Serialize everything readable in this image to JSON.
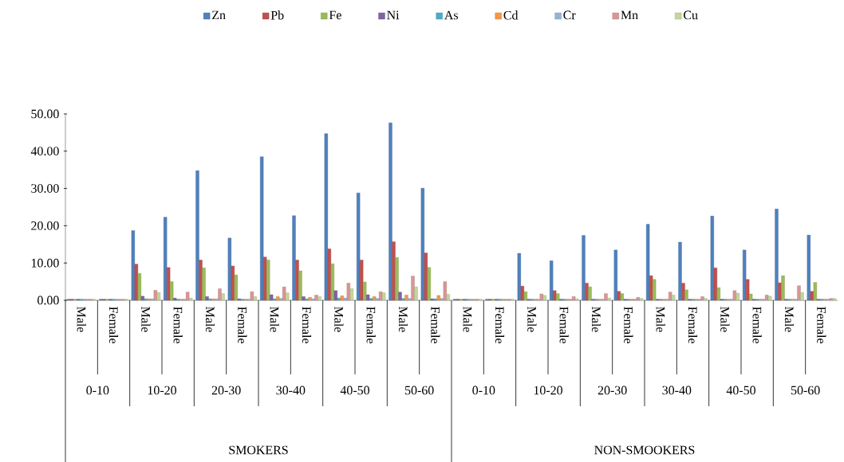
{
  "chart_data": {
    "type": "bar",
    "categories": [
      "Male",
      "Female",
      "Male",
      "Female",
      "Male",
      "Female",
      "Male",
      "Female",
      "Male",
      "Female",
      "Male",
      "Female",
      "Male",
      "Female",
      "Male",
      "Female",
      "Male",
      "Female",
      "Male",
      "Female",
      "Male",
      "Female",
      "Male",
      "Female"
    ],
    "series": [
      {
        "name": "Zn",
        "color": "#4f81bd",
        "values": [
          0.3,
          0.3,
          18.7,
          22.3,
          34.8,
          16.7,
          38.5,
          22.7,
          44.7,
          28.8,
          47.6,
          30.1,
          0.3,
          0.3,
          12.6,
          10.6,
          17.4,
          13.5,
          20.4,
          15.6,
          22.6,
          13.5,
          24.5,
          17.5
        ]
      },
      {
        "name": "Pb",
        "color": "#c0504d",
        "values": [
          0.3,
          0.3,
          9.7,
          8.8,
          10.8,
          9.2,
          11.6,
          10.8,
          13.8,
          10.8,
          15.7,
          12.7,
          0.3,
          0.3,
          3.8,
          2.6,
          4.6,
          2.4,
          6.6,
          4.6,
          8.7,
          5.6,
          4.7,
          2.4
        ]
      },
      {
        "name": "Fe",
        "color": "#9bbb59",
        "values": [
          0.3,
          0.3,
          7.2,
          5.0,
          8.7,
          6.8,
          10.8,
          7.9,
          9.8,
          4.9,
          11.5,
          8.8,
          0.3,
          0.3,
          2.3,
          1.8,
          3.6,
          1.8,
          5.6,
          2.8,
          3.4,
          1.7,
          6.6,
          4.8
        ]
      },
      {
        "name": "Ni",
        "color": "#8064a2",
        "values": [
          0.3,
          0.3,
          1.1,
          0.6,
          1.0,
          0.4,
          1.5,
          1.0,
          2.6,
          1.5,
          2.2,
          0.4,
          0.3,
          0.3,
          0.3,
          0.3,
          0.3,
          0.3,
          0.3,
          0.3,
          0.3,
          0.3,
          0.3,
          0.3
        ]
      },
      {
        "name": "As",
        "color": "#4bacc6",
        "values": [
          0.3,
          0.3,
          0.4,
          0.3,
          0.4,
          0.3,
          0.4,
          0.4,
          0.6,
          0.5,
          0.5,
          0.4,
          0.3,
          0.3,
          0.3,
          0.3,
          0.3,
          0.3,
          0.3,
          0.3,
          0.3,
          0.3,
          0.3,
          0.3
        ]
      },
      {
        "name": "Cd",
        "color": "#f79646",
        "values": [
          0.3,
          0.3,
          0.4,
          0.3,
          0.4,
          0.3,
          1.0,
          0.8,
          1.2,
          1.0,
          1.4,
          1.3,
          0.3,
          0.3,
          0.3,
          0.3,
          0.3,
          0.3,
          0.3,
          0.3,
          0.3,
          0.3,
          0.3,
          0.3
        ]
      },
      {
        "name": "Cr",
        "color": "#95b3d7",
        "values": [
          0.3,
          0.3,
          0.4,
          0.3,
          0.4,
          0.3,
          0.5,
          0.4,
          0.6,
          0.5,
          0.5,
          0.5,
          0.3,
          0.3,
          0.3,
          0.3,
          0.3,
          0.3,
          0.3,
          0.3,
          0.3,
          0.3,
          0.3,
          0.3
        ]
      },
      {
        "name": "Mn",
        "color": "#d99694",
        "values": [
          0.3,
          0.3,
          2.7,
          2.2,
          3.1,
          2.3,
          3.6,
          1.4,
          4.6,
          2.3,
          6.5,
          5.0,
          0.3,
          0.3,
          1.7,
          1.0,
          1.8,
          0.8,
          2.2,
          1.0,
          2.6,
          1.4,
          3.9,
          0.5
        ]
      },
      {
        "name": "Cu",
        "color": "#c3d69b",
        "values": [
          0.3,
          0.3,
          2.1,
          0.6,
          1.8,
          1.0,
          2.0,
          1.0,
          3.1,
          2.0,
          3.6,
          1.6,
          0.3,
          0.3,
          1.3,
          0.4,
          0.6,
          0.5,
          1.4,
          0.5,
          1.9,
          1.1,
          2.1,
          0.5
        ]
      }
    ],
    "ylim": [
      0,
      50
    ],
    "yticks": [
      {
        "value": 0,
        "label": "0.00"
      },
      {
        "value": 10,
        "label": "10.00"
      },
      {
        "value": 20,
        "label": "20.00"
      },
      {
        "value": 30,
        "label": "30.00"
      },
      {
        "value": 40,
        "label": "40.00"
      },
      {
        "value": 50,
        "label": "50.00"
      }
    ],
    "legend": "top",
    "annotations": [
      "0-10",
      "10-20",
      "20-30",
      "30-40",
      "40-50",
      "50-60",
      "0-10",
      "10-20",
      "20-30",
      "30-40",
      "40-50",
      "50-60",
      "SMOKERS",
      "NON-SMOOKERS"
    ]
  }
}
